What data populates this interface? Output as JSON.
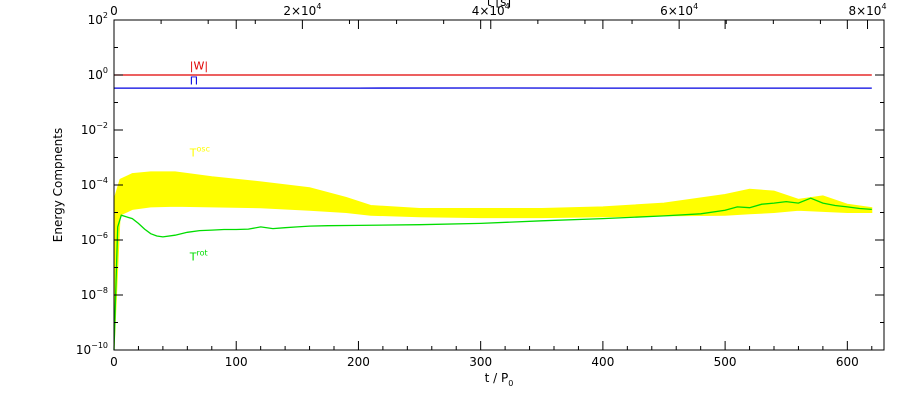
{
  "chart_data": {
    "type": "line",
    "title": "",
    "xlabel": "t / P",
    "xlabel_sub": "0",
    "xlim": [
      0,
      630
    ],
    "x_ticks": [
      0,
      100,
      200,
      300,
      400,
      500,
      600
    ],
    "x_minor_step": 20,
    "x2label": "t [s]",
    "x2lim": [
      0,
      81750
    ],
    "x2_ticks": [
      {
        "value": 0,
        "label": "0",
        "exp": ""
      },
      {
        "value": 20000,
        "label": "2×10",
        "exp": "4"
      },
      {
        "value": 40000,
        "label": "4×10",
        "exp": "4"
      },
      {
        "value": 60000,
        "label": "6×10",
        "exp": "4"
      },
      {
        "value": 80000,
        "label": "8×10",
        "exp": "4"
      }
    ],
    "ylabel": "Energy Compnents",
    "ylim": [
      1e-10,
      100
    ],
    "yscale": "log",
    "y_ticks": [
      {
        "value": 1e-10,
        "label": "10",
        "exp": "−10"
      },
      {
        "value": 1e-08,
        "label": "10",
        "exp": "−8"
      },
      {
        "value": 1e-06,
        "label": "10",
        "exp": "−6"
      },
      {
        "value": 0.0001,
        "label": "10",
        "exp": "−4"
      },
      {
        "value": 0.01,
        "label": "10",
        "exp": "−2"
      },
      {
        "value": 1,
        "label": "10",
        "exp": "0"
      },
      {
        "value": 100,
        "label": "10",
        "exp": "2"
      }
    ],
    "series": [
      {
        "name": "|W|",
        "name_sup": "",
        "color": "#e00000",
        "style": "line",
        "x": [
          0,
          100,
          200,
          300,
          400,
          500,
          620
        ],
        "y": [
          1.0,
          1.0,
          1.0,
          1.0,
          1.0,
          1.0,
          1.0
        ]
      },
      {
        "name": "Π",
        "name_sup": "",
        "color": "#0000e0",
        "style": "line",
        "x": [
          0,
          100,
          200,
          300,
          400,
          500,
          620
        ],
        "y": [
          0.333,
          0.333,
          0.335,
          0.336,
          0.334,
          0.334,
          0.334
        ]
      },
      {
        "name": "T",
        "name_sup": "osc",
        "color": "#ffff00",
        "style": "band",
        "x": [
          0,
          5,
          15,
          30,
          50,
          80,
          120,
          160,
          190,
          210,
          250,
          300,
          350,
          400,
          450,
          500,
          520,
          540,
          560,
          580,
          600,
          620
        ],
        "upper": [
          3e-05,
          0.00016,
          0.00026,
          0.0003,
          0.0003,
          0.0002,
          0.00013,
          8e-05,
          3.5e-05,
          1.8e-05,
          1.4e-05,
          1.4e-05,
          1.4e-05,
          1.6e-05,
          2.2e-05,
          4.5e-05,
          7e-05,
          6e-05,
          3e-05,
          4e-05,
          2e-05,
          1.5e-05
        ],
        "lower": [
          1e-10,
          8e-06,
          1.3e-05,
          1.6e-05,
          1.7e-05,
          1.6e-05,
          1.5e-05,
          1.2e-05,
          1e-05,
          8e-06,
          7e-06,
          6.5e-06,
          6.5e-06,
          7e-06,
          7.5e-06,
          8e-06,
          9e-06,
          1e-05,
          1.2e-05,
          1.1e-05,
          1e-05,
          1e-05
        ]
      },
      {
        "name": "T",
        "name_sup": "rot",
        "color": "#00dd00",
        "style": "line",
        "x": [
          0,
          3,
          6,
          10,
          15,
          20,
          25,
          30,
          35,
          40,
          50,
          60,
          70,
          80,
          90,
          100,
          110,
          120,
          130,
          140,
          150,
          160,
          175,
          200,
          250,
          300,
          350,
          400,
          450,
          480,
          500,
          510,
          520,
          530,
          540,
          550,
          560,
          570,
          580,
          590,
          600,
          610,
          620
        ],
        "y": [
          1e-10,
          3e-06,
          8e-06,
          7e-06,
          6e-06,
          4e-06,
          2.5e-06,
          1.7e-06,
          1.4e-06,
          1.3e-06,
          1.5e-06,
          1.9e-06,
          2.2e-06,
          2.3e-06,
          2.4e-06,
          2.4e-06,
          2.5e-06,
          3e-06,
          2.6e-06,
          2.8e-06,
          3e-06,
          3.2e-06,
          3.3e-06,
          3.4e-06,
          3.6e-06,
          4e-06,
          5e-06,
          6e-06,
          7.5e-06,
          9e-06,
          1.2e-05,
          1.6e-05,
          1.5e-05,
          2e-05,
          2.2e-05,
          2.5e-05,
          2.2e-05,
          3.3e-05,
          2.2e-05,
          1.8e-05,
          1.6e-05,
          1.4e-05,
          1.3e-05
        ]
      }
    ],
    "series_labels": [
      {
        "series": 0,
        "at_x": 62,
        "at_y": 1.6
      },
      {
        "series": 1,
        "at_x": 62,
        "at_y": 0.45
      },
      {
        "series": 2,
        "at_x": 62,
        "at_y": 0.0011
      },
      {
        "series": 3,
        "at_x": 62,
        "at_y": 1.8e-07
      }
    ],
    "grid": false,
    "legend": "none"
  }
}
